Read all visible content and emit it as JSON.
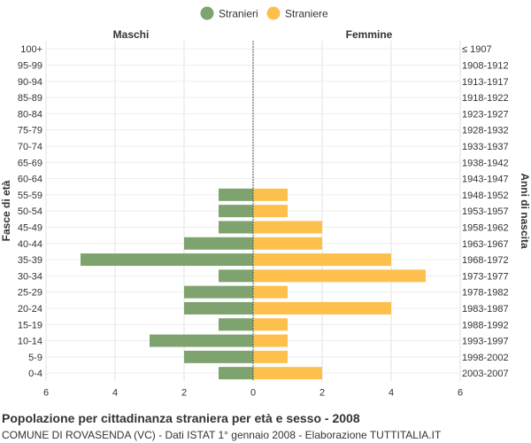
{
  "chart_data": {
    "type": "bar",
    "title": "Popolazione per cittadinanza straniera per età e sesso - 2008",
    "subtitle": "COMUNE DI ROVASENDA (VC) - Dati ISTAT 1° gennaio 2008 - Elaborazione TUTTITALIA.IT",
    "ylabel_left": "Fasce di età",
    "ylabel_right": "Anni di nascita",
    "left_header": "Maschi",
    "right_header": "Femmine",
    "xlim": [
      -6,
      6
    ],
    "xticks": [
      6,
      4,
      2,
      0,
      2,
      4,
      6
    ],
    "legend_position": "top-center",
    "categories": [
      "100+",
      "95-99",
      "90-94",
      "85-89",
      "80-84",
      "75-79",
      "70-74",
      "65-69",
      "60-64",
      "55-59",
      "50-54",
      "45-49",
      "40-44",
      "35-39",
      "30-34",
      "25-29",
      "20-24",
      "15-19",
      "10-14",
      "5-9",
      "0-4"
    ],
    "birth_years": [
      "≤ 1907",
      "1908-1912",
      "1913-1917",
      "1918-1922",
      "1923-1927",
      "1928-1932",
      "1933-1937",
      "1938-1942",
      "1943-1947",
      "1948-1952",
      "1953-1957",
      "1958-1962",
      "1963-1967",
      "1968-1972",
      "1973-1977",
      "1978-1982",
      "1983-1987",
      "1988-1992",
      "1993-1997",
      "1998-2002",
      "2003-2007"
    ],
    "series": [
      {
        "name": "Stranieri",
        "color": "#7fa36f",
        "side": "left",
        "values": [
          0,
          0,
          0,
          0,
          0,
          0,
          0,
          0,
          0,
          1,
          1,
          1,
          2,
          5,
          1,
          2,
          2,
          1,
          3,
          2,
          1
        ]
      },
      {
        "name": "Straniere",
        "color": "#fdc04d",
        "side": "right",
        "values": [
          0,
          0,
          0,
          0,
          0,
          0,
          0,
          0,
          0,
          1,
          1,
          2,
          2,
          4,
          5,
          1,
          4,
          1,
          1,
          1,
          2
        ]
      }
    ]
  }
}
